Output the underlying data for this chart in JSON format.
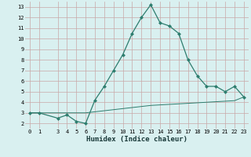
{
  "xlabel": "Humidex (Indice chaleur)",
  "line1_x": [
    0,
    1,
    3,
    4,
    5,
    6,
    7,
    8,
    9,
    10,
    11,
    12,
    13,
    14,
    15,
    16,
    17,
    18,
    19,
    20,
    21,
    22,
    23
  ],
  "line1_y": [
    3,
    3,
    2.5,
    2.8,
    2.2,
    2.0,
    4.2,
    5.5,
    7.0,
    8.5,
    10.5,
    12.0,
    13.2,
    11.5,
    11.2,
    10.5,
    8.0,
    6.5,
    5.5,
    5.5,
    5.0,
    5.5,
    4.5
  ],
  "line2_x": [
    0,
    1,
    3,
    4,
    5,
    6,
    7,
    8,
    9,
    10,
    11,
    12,
    13,
    14,
    15,
    16,
    17,
    18,
    19,
    20,
    21,
    22,
    23
  ],
  "line2_y": [
    3.0,
    3.0,
    3.0,
    3.0,
    3.0,
    3.0,
    3.1,
    3.2,
    3.3,
    3.4,
    3.5,
    3.6,
    3.7,
    3.75,
    3.8,
    3.85,
    3.9,
    3.95,
    4.0,
    4.05,
    4.1,
    4.15,
    4.5
  ],
  "line_color": "#2d7d6e",
  "bg_color": "#d9f0f0",
  "grid_color_major": "#c8a8a8",
  "grid_color_minor": "#ddc8c8",
  "xlim": [
    -0.5,
    23.5
  ],
  "ylim": [
    1.5,
    13.5
  ],
  "yticks": [
    2,
    3,
    4,
    5,
    6,
    7,
    8,
    9,
    10,
    11,
    12,
    13
  ],
  "xticks": [
    0,
    1,
    3,
    4,
    5,
    6,
    7,
    8,
    9,
    10,
    11,
    12,
    13,
    14,
    15,
    16,
    17,
    18,
    19,
    20,
    21,
    22,
    23
  ],
  "tick_fontsize": 5.0,
  "xlabel_fontsize": 6.5,
  "marker_size": 2.5
}
